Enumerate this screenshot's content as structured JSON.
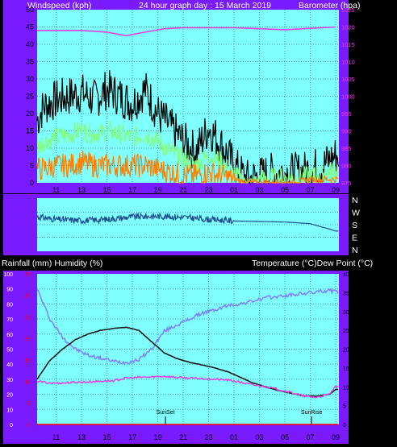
{
  "header": {
    "left": "Windspeed (kph)",
    "center": "24 hour graph day : 15 March 2019",
    "right": "Barometer (hpa)"
  },
  "mid_header": {
    "left": "Rainfall (mm)  Humidity (%)",
    "right": "Temperature (°C)Dew Point (°C)"
  },
  "colors": {
    "frame_purple": "#7a1aff",
    "plot_cyan": "#80ffff",
    "wind_black": "#000000",
    "wind_green": "#80ff80",
    "wind_orange": "#ff8000",
    "barometer_magenta": "#e040e0",
    "direction_blue": "#1f4f8f",
    "temperature": "#1a1a1a",
    "dewpoint": "#e040e0",
    "humidity": "#8080ff",
    "rainfall_red": "#ff0000"
  },
  "chart_data": [
    {
      "type": "line",
      "panel": "wind-barometer",
      "x_ticks": [
        "11",
        "13",
        "15",
        "17",
        "19",
        "21",
        "23",
        "01",
        "03",
        "05",
        "07",
        "09"
      ],
      "left_axis": {
        "ticks": [
          "0",
          "5",
          "10",
          "15",
          "20",
          "25",
          "30",
          "35",
          "40",
          "45",
          "50"
        ],
        "ylim": [
          0,
          50
        ]
      },
      "right_axis": {
        "ticks": [
          "975",
          "980",
          "985",
          "990",
          "995",
          "1000",
          "1005",
          "1010",
          "1015",
          "1020",
          "1025"
        ],
        "ylim": [
          975,
          1025
        ]
      },
      "series": [
        {
          "label_hint": "gust",
          "x": [
            9.5,
            10,
            11,
            12,
            13,
            14,
            15,
            16,
            17,
            18,
            19,
            20,
            21,
            22,
            23,
            24,
            25,
            26,
            27,
            28,
            29,
            30,
            31,
            32,
            33
          ],
          "y": [
            18,
            22,
            24,
            25,
            26,
            24,
            27,
            25,
            23,
            27,
            20,
            16,
            12,
            9,
            16,
            11,
            5,
            1,
            2,
            3,
            3,
            3,
            4,
            5,
            8
          ]
        },
        {
          "label_hint": "average",
          "x": [
            9.5,
            10,
            11,
            12,
            13,
            14,
            15,
            16,
            17,
            18,
            19,
            20,
            21,
            22,
            23,
            24,
            25,
            26,
            27,
            28,
            29,
            30,
            31,
            32,
            33
          ],
          "y": [
            10,
            12,
            13,
            14,
            15,
            14,
            15,
            14,
            13,
            14,
            12,
            9,
            7,
            5,
            8,
            6,
            2,
            0.5,
            1,
            1.5,
            1.5,
            1.5,
            2,
            2.5,
            4
          ]
        },
        {
          "label_hint": "lull",
          "x": [
            9.5,
            10,
            11,
            12,
            13,
            14,
            15,
            16,
            17,
            18,
            19,
            20,
            21,
            22,
            23,
            24,
            25,
            26,
            27,
            28,
            29,
            30,
            31,
            32,
            33
          ],
          "y": [
            4,
            4,
            5,
            5,
            6,
            5,
            5,
            5,
            5,
            5,
            4,
            3,
            2,
            2,
            3,
            2,
            1,
            0,
            0,
            0,
            0,
            0,
            1,
            1,
            1
          ]
        },
        {
          "label_hint": "barometer",
          "axis": "right",
          "x": [
            9.5,
            11,
            13,
            15,
            16.5,
            18,
            19.5,
            21,
            23,
            25,
            27,
            29,
            31,
            33
          ],
          "y": [
            1019,
            1019,
            1019,
            1018.5,
            1017.5,
            1018.5,
            1019.5,
            1019.8,
            1019.8,
            1019.8,
            1019.5,
            1019.2,
            1019.6,
            1020
          ]
        }
      ]
    },
    {
      "type": "line",
      "panel": "wind-direction",
      "right_axis_labels": [
        "N",
        "W",
        "S",
        "E",
        "N"
      ],
      "series": [
        {
          "label_hint": "direction",
          "x": [
            9.5,
            11,
            13,
            15,
            17,
            19,
            21,
            23,
            24.5,
            25,
            27,
            29,
            31,
            32,
            32.5,
            33
          ],
          "y": [
            0.65,
            0.6,
            0.58,
            0.6,
            0.65,
            0.66,
            0.64,
            0.6,
            0.58,
            0.57,
            0.56,
            0.55,
            0.52,
            0.45,
            0.42,
            0.38
          ]
        }
      ]
    },
    {
      "type": "line",
      "panel": "temperature-humidity",
      "x_ticks": [
        "11",
        "13",
        "15",
        "17",
        "19",
        "21",
        "23",
        "01",
        "03",
        "05",
        "07",
        "09"
      ],
      "left_axis": {
        "ticks": [
          "0",
          "10",
          "20",
          "30",
          "40",
          "50",
          "60",
          "70",
          "80",
          "90",
          "100"
        ],
        "ylim": [
          0,
          100
        ]
      },
      "left_axis2": {
        "ticks": [
          "0",
          "5",
          "10",
          "15",
          "20",
          "25",
          "30",
          "35"
        ],
        "ylim": [
          0,
          35
        ]
      },
      "right_axis": {
        "ticks": [
          "0",
          "5",
          "10",
          "15",
          "20",
          "25",
          "30",
          "35",
          "40"
        ],
        "ylim": [
          0,
          40
        ]
      },
      "annotations": [
        {
          "text": "SunSet",
          "x": 19.6
        },
        {
          "text": "SunRise",
          "x": 31.1
        }
      ],
      "series": [
        {
          "label_hint": "humidity",
          "axis": "left",
          "x": [
            9.5,
            10.5,
            11.5,
            12.5,
            13.5,
            14.5,
            15.5,
            16.5,
            17.5,
            18.5,
            19.5,
            20.5,
            21.5,
            22.5,
            23.5,
            24.5,
            25.5,
            26.5,
            27.5,
            28.5,
            29.5,
            30.5,
            31.5,
            32.5,
            33
          ],
          "y": [
            90,
            70,
            58,
            50,
            46,
            44,
            42,
            41,
            43,
            50,
            62,
            66,
            70,
            74,
            76,
            79,
            80,
            82,
            84,
            85,
            86,
            87,
            88,
            89,
            88
          ]
        },
        {
          "label_hint": "temperature",
          "axis": "right",
          "x": [
            9.5,
            10.5,
            11.5,
            12.5,
            13.5,
            14.5,
            15.5,
            16.5,
            17.5,
            18.5,
            19.5,
            20.5,
            21.5,
            22.5,
            23.5,
            24.5,
            25.5,
            26.5,
            27.5,
            28.5,
            29.5,
            30.5,
            31.5,
            32.5,
            33
          ],
          "y": [
            12,
            17,
            20,
            22.5,
            24,
            25,
            25.5,
            25.8,
            25,
            22,
            19,
            17.5,
            16.5,
            15.8,
            15,
            14,
            12.5,
            11,
            10,
            9,
            8.3,
            7.6,
            7.5,
            8,
            9.3
          ]
        },
        {
          "label_hint": "dewpoint",
          "axis": "right",
          "x": [
            9.5,
            10.5,
            11.5,
            12.5,
            13.5,
            14.5,
            15.5,
            16.5,
            17.5,
            18.5,
            19.5,
            20.5,
            21.5,
            22.5,
            23.5,
            24.5,
            25.5,
            26.5,
            27.5,
            28.5,
            29.5,
            30.5,
            31.5,
            32.5,
            33
          ],
          "y": [
            11.5,
            11,
            11,
            11.2,
            11.3,
            11.5,
            11.6,
            12.3,
            12.5,
            12.6,
            12.8,
            12.5,
            12.3,
            12.2,
            12,
            11.8,
            11.2,
            10.5,
            10,
            9.3,
            8.5,
            7.5,
            7.2,
            8,
            10
          ]
        },
        {
          "label_hint": "rainfall",
          "axis": "left2",
          "x": [
            9.5,
            33
          ],
          "y": [
            0,
            0
          ]
        }
      ]
    }
  ]
}
